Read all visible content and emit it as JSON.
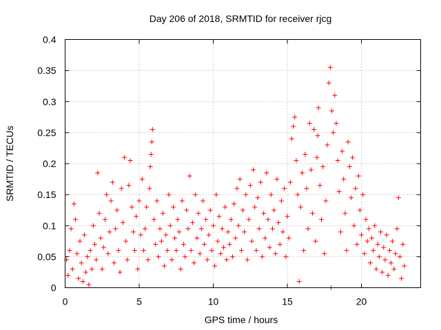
{
  "chart_data": {
    "type": "scatter",
    "title": "Day 206 of 2018, SRMTID for receiver rjcg",
    "xlabel": "GPS time / hours",
    "ylabel": "SRMTID / TECUs",
    "xlim": [
      0,
      24
    ],
    "ylim": [
      0,
      0.4
    ],
    "x_ticks": [
      0,
      5,
      10,
      15,
      20
    ],
    "x_tick_labels": [
      "0",
      "5",
      "10",
      "15",
      "20"
    ],
    "y_ticks": [
      0,
      0.05,
      0.1,
      0.15,
      0.2,
      0.25,
      0.3,
      0.35,
      0.4
    ],
    "y_tick_labels": [
      "0",
      "0.05",
      "0.1",
      "0.15",
      "0.2",
      "0.25",
      "0.3",
      "0.35",
      "0.4"
    ],
    "grid": true,
    "marker": "plus",
    "color": "#ff0000",
    "series": [
      {
        "name": "SRMTID",
        "points": [
          [
            0.1,
            0.045
          ],
          [
            0.2,
            0.02
          ],
          [
            0.3,
            0.06
          ],
          [
            0.4,
            0.095
          ],
          [
            0.5,
            0.03
          ],
          [
            0.6,
            0.135
          ],
          [
            0.7,
            0.11
          ],
          [
            0.8,
            0.055
          ],
          [
            0.9,
            0.015
          ],
          [
            1.0,
            0.075
          ],
          [
            1.1,
            0.04
          ],
          [
            1.2,
            0.01
          ],
          [
            1.3,
            0.085
          ],
          [
            1.4,
            0.025
          ],
          [
            1.5,
            0.05
          ],
          [
            1.6,
            0.005
          ],
          [
            1.7,
            0.06
          ],
          [
            1.8,
            0.03
          ],
          [
            1.9,
            0.1
          ],
          [
            2.0,
            0.07
          ],
          [
            2.1,
            0.045
          ],
          [
            2.2,
            0.185
          ],
          [
            2.3,
            0.12
          ],
          [
            2.4,
            0.08
          ],
          [
            2.5,
            0.03
          ],
          [
            2.6,
            0.065
          ],
          [
            2.7,
            0.11
          ],
          [
            2.8,
            0.15
          ],
          [
            2.9,
            0.055
          ],
          [
            3.0,
            0.09
          ],
          [
            3.1,
            0.14
          ],
          [
            3.2,
            0.17
          ],
          [
            3.3,
            0.04
          ],
          [
            3.4,
            0.095
          ],
          [
            3.5,
            0.125
          ],
          [
            3.6,
            0.06
          ],
          [
            3.7,
            0.025
          ],
          [
            3.8,
            0.16
          ],
          [
            3.9,
            0.105
          ],
          [
            4.0,
            0.21
          ],
          [
            4.1,
            0.075
          ],
          [
            4.2,
            0.045
          ],
          [
            4.3,
            0.165
          ],
          [
            4.4,
            0.205
          ],
          [
            4.5,
            0.13
          ],
          [
            4.6,
            0.09
          ],
          [
            4.7,
            0.06
          ],
          [
            4.8,
            0.115
          ],
          [
            4.9,
            0.03
          ],
          [
            5.0,
            0.14
          ],
          [
            5.1,
            0.085
          ],
          [
            5.2,
            0.175
          ],
          [
            5.3,
            0.06
          ],
          [
            5.4,
            0.095
          ],
          [
            5.5,
            0.13
          ],
          [
            5.6,
            0.045
          ],
          [
            5.7,
            0.16
          ],
          [
            5.75,
            0.195
          ],
          [
            5.8,
            0.215
          ],
          [
            5.85,
            0.235
          ],
          [
            5.9,
            0.255
          ],
          [
            6.0,
            0.11
          ],
          [
            6.1,
            0.07
          ],
          [
            6.2,
            0.14
          ],
          [
            6.3,
            0.05
          ],
          [
            6.4,
            0.095
          ],
          [
            6.5,
            0.075
          ],
          [
            6.6,
            0.12
          ],
          [
            6.7,
            0.035
          ],
          [
            6.8,
            0.085
          ],
          [
            6.9,
            0.06
          ],
          [
            7.0,
            0.15
          ],
          [
            7.1,
            0.1
          ],
          [
            7.2,
            0.045
          ],
          [
            7.3,
            0.13
          ],
          [
            7.4,
            0.08
          ],
          [
            7.5,
            0.06
          ],
          [
            7.6,
            0.11
          ],
          [
            7.7,
            0.09
          ],
          [
            7.8,
            0.03
          ],
          [
            7.9,
            0.14
          ],
          [
            8.0,
            0.07
          ],
          [
            8.1,
            0.05
          ],
          [
            8.2,
            0.125
          ],
          [
            8.3,
            0.095
          ],
          [
            8.4,
            0.18
          ],
          [
            8.5,
            0.06
          ],
          [
            8.6,
            0.105
          ],
          [
            8.7,
            0.04
          ],
          [
            8.8,
            0.15
          ],
          [
            8.9,
            0.08
          ],
          [
            9.0,
            0.12
          ],
          [
            9.1,
            0.055
          ],
          [
            9.2,
            0.095
          ],
          [
            9.3,
            0.14
          ],
          [
            9.4,
            0.07
          ],
          [
            9.5,
            0.11
          ],
          [
            9.6,
            0.045
          ],
          [
            9.7,
            0.085
          ],
          [
            9.8,
            0.125
          ],
          [
            9.9,
            0.06
          ],
          [
            10.0,
            0.1
          ],
          [
            10.1,
            0.035
          ],
          [
            10.2,
            0.15
          ],
          [
            10.3,
            0.075
          ],
          [
            10.4,
            0.115
          ],
          [
            10.5,
            0.055
          ],
          [
            10.6,
            0.095
          ],
          [
            10.7,
            0.065
          ],
          [
            10.8,
            0.13
          ],
          [
            10.9,
            0.045
          ],
          [
            11.0,
            0.09
          ],
          [
            11.1,
            0.07
          ],
          [
            11.2,
            0.11
          ],
          [
            11.3,
            0.05
          ],
          [
            11.4,
            0.135
          ],
          [
            11.5,
            0.08
          ],
          [
            11.6,
            0.16
          ],
          [
            11.7,
            0.1
          ],
          [
            11.8,
            0.175
          ],
          [
            11.9,
            0.06
          ],
          [
            12.0,
            0.125
          ],
          [
            12.1,
            0.09
          ],
          [
            12.2,
            0.15
          ],
          [
            12.3,
            0.045
          ],
          [
            12.4,
            0.11
          ],
          [
            12.5,
            0.165
          ],
          [
            12.6,
            0.075
          ],
          [
            12.7,
            0.19
          ],
          [
            12.8,
            0.13
          ],
          [
            12.9,
            0.06
          ],
          [
            13.0,
            0.145
          ],
          [
            13.1,
            0.095
          ],
          [
            13.2,
            0.17
          ],
          [
            13.3,
            0.05
          ],
          [
            13.4,
            0.12
          ],
          [
            13.5,
            0.08
          ],
          [
            13.6,
            0.185
          ],
          [
            13.7,
            0.11
          ],
          [
            13.8,
            0.065
          ],
          [
            13.9,
            0.15
          ],
          [
            14.0,
            0.095
          ],
          [
            14.1,
            0.125
          ],
          [
            14.2,
            0.055
          ],
          [
            14.3,
            0.175
          ],
          [
            14.4,
            0.105
          ],
          [
            14.5,
            0.07
          ],
          [
            14.6,
            0.14
          ],
          [
            14.7,
            0.09
          ],
          [
            14.8,
            0.16
          ],
          [
            14.9,
            0.05
          ],
          [
            15.0,
            0.115
          ],
          [
            15.1,
            0.08
          ],
          [
            15.2,
            0.17
          ],
          [
            15.3,
            0.24
          ],
          [
            15.4,
            0.26
          ],
          [
            15.5,
            0.275
          ],
          [
            15.6,
            0.205
          ],
          [
            15.7,
            0.15
          ],
          [
            15.8,
            0.01
          ],
          [
            15.9,
            0.13
          ],
          [
            16.0,
            0.185
          ],
          [
            16.1,
            0.06
          ],
          [
            16.2,
            0.215
          ],
          [
            16.3,
            0.16
          ],
          [
            16.4,
            0.095
          ],
          [
            16.5,
            0.265
          ],
          [
            16.6,
            0.19
          ],
          [
            16.7,
            0.12
          ],
          [
            16.8,
            0.255
          ],
          [
            16.9,
            0.075
          ],
          [
            17.0,
            0.21
          ],
          [
            17.05,
            0.245
          ],
          [
            17.1,
            0.29
          ],
          [
            17.2,
            0.165
          ],
          [
            17.3,
            0.11
          ],
          [
            17.4,
            0.195
          ],
          [
            17.5,
            0.055
          ],
          [
            17.6,
            0.14
          ],
          [
            17.7,
            0.23
          ],
          [
            17.8,
            0.33
          ],
          [
            17.9,
            0.355
          ],
          [
            17.95,
            0.0
          ],
          [
            18.0,
            0.285
          ],
          [
            18.1,
            0.25
          ],
          [
            18.2,
            0.31
          ],
          [
            18.3,
            0.265
          ],
          [
            18.4,
            0.205
          ],
          [
            18.5,
            0.155
          ],
          [
            18.6,
            0.09
          ],
          [
            18.7,
            0.22
          ],
          [
            18.8,
            0.175
          ],
          [
            18.9,
            0.12
          ],
          [
            19.0,
            0.06
          ],
          [
            19.1,
            0.235
          ],
          [
            19.2,
            0.195
          ],
          [
            19.3,
            0.145
          ],
          [
            19.4,
            0.21
          ],
          [
            19.5,
            0.1
          ],
          [
            19.6,
            0.16
          ],
          [
            19.7,
            0.07
          ],
          [
            19.8,
            0.18
          ],
          [
            19.9,
            0.125
          ],
          [
            20.0,
            0.085
          ],
          [
            20.1,
            0.15
          ],
          [
            20.2,
            0.055
          ],
          [
            20.3,
            0.11
          ],
          [
            20.4,
            0.075
          ],
          [
            20.5,
            0.095
          ],
          [
            20.6,
            0.04
          ],
          [
            20.7,
            0.08
          ],
          [
            20.8,
            0.06
          ],
          [
            20.9,
            0.1
          ],
          [
            21.0,
            0.03
          ],
          [
            21.1,
            0.07
          ],
          [
            21.2,
            0.05
          ],
          [
            21.3,
            0.09
          ],
          [
            21.4,
            0.025
          ],
          [
            21.5,
            0.065
          ],
          [
            21.6,
            0.045
          ],
          [
            21.7,
            0.085
          ],
          [
            21.8,
            0.02
          ],
          [
            21.9,
            0.06
          ],
          [
            22.0,
            0.04
          ],
          [
            22.1,
            0.075
          ],
          [
            22.2,
            0.03
          ],
          [
            22.3,
            0.055
          ],
          [
            22.4,
            0.095
          ],
          [
            22.5,
            0.145
          ],
          [
            22.6,
            0.05
          ],
          [
            22.7,
            0.015
          ],
          [
            22.8,
            0.07
          ],
          [
            22.9,
            0.035
          ]
        ]
      }
    ]
  }
}
